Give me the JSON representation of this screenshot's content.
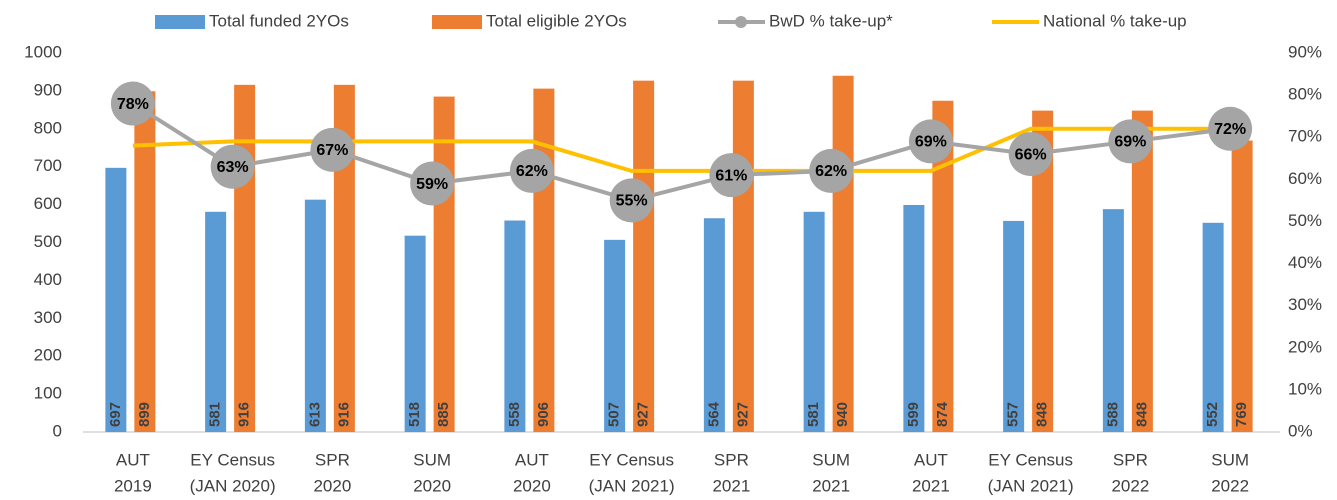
{
  "chart_data": {
    "type": "bar-line",
    "categories": [
      [
        "AUT",
        "2019"
      ],
      [
        "EY Census",
        "(JAN 2020)"
      ],
      [
        "SPR",
        "2020"
      ],
      [
        "SUM",
        "2020"
      ],
      [
        "AUT",
        "2020"
      ],
      [
        "EY Census",
        "(JAN 2021)"
      ],
      [
        "SPR",
        "2021"
      ],
      [
        "SUM",
        "2021"
      ],
      [
        "AUT",
        "2021"
      ],
      [
        "EY Census",
        "(JAN 2021)"
      ],
      [
        "SPR",
        "2022"
      ],
      [
        "SUM",
        "2022"
      ]
    ],
    "series": [
      {
        "name": "Total funded 2YOs",
        "type": "bar",
        "color": "#5b9bd5",
        "values": [
          697,
          581,
          613,
          518,
          558,
          507,
          564,
          581,
          599,
          557,
          588,
          552
        ]
      },
      {
        "name": "Total eligible 2YOs",
        "type": "bar",
        "color": "#ed7d31",
        "values": [
          899,
          916,
          916,
          885,
          906,
          927,
          927,
          940,
          874,
          848,
          848,
          769
        ]
      },
      {
        "name": "BwD % take-up*",
        "type": "line-marker",
        "axis": "y2",
        "color": "#a5a5a5",
        "values": [
          78,
          63,
          67,
          59,
          62,
          55,
          61,
          62,
          69,
          66,
          69,
          72
        ],
        "value_labels": [
          "78%",
          "63%",
          "67%",
          "59%",
          "62%",
          "55%",
          "61%",
          "62%",
          "69%",
          "66%",
          "69%",
          "72%"
        ]
      },
      {
        "name": "National % take-up",
        "type": "line",
        "axis": "y2",
        "color": "#ffc000",
        "values": [
          68,
          69,
          69,
          69,
          69,
          62,
          62,
          62,
          62,
          72,
          72,
          72
        ]
      }
    ],
    "ylim": [
      0,
      1000
    ],
    "yticks": [
      0,
      100,
      200,
      300,
      400,
      500,
      600,
      700,
      800,
      900,
      1000
    ],
    "y2lim": [
      0,
      90
    ],
    "y2ticks": [
      {
        "value": 0,
        "label": "0%"
      },
      {
        "value": 10,
        "label": "10%"
      },
      {
        "value": 20,
        "label": "20%"
      },
      {
        "value": 30,
        "label": "30%"
      },
      {
        "value": 40,
        "label": "40%"
      },
      {
        "value": 50,
        "label": "50%"
      },
      {
        "value": 60,
        "label": "60%"
      },
      {
        "value": 70,
        "label": "70%"
      },
      {
        "value": 80,
        "label": "80%"
      },
      {
        "value": 90,
        "label": "90%"
      }
    ],
    "grid": false
  }
}
